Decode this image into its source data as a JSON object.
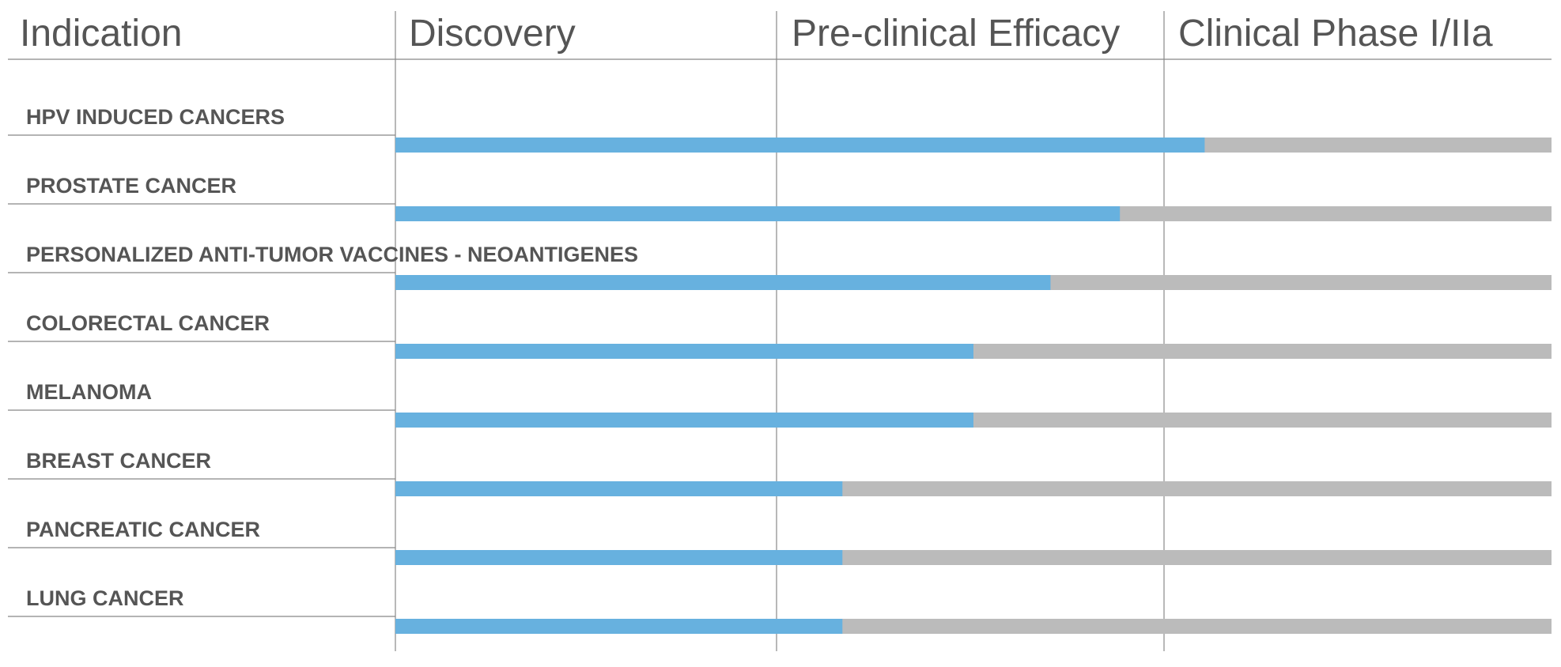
{
  "chart_data": {
    "type": "bar",
    "orientation": "horizontal",
    "columns": [
      "Indication",
      "Discovery",
      "Pre-clinical Efficacy",
      "Clinical Phase I/IIa"
    ],
    "categories": [
      "HPV INDUCED CANCERS",
      "PROSTATE CANCER",
      "PERSONALIZED ANTI-TUMOR VACCINES - NEOANTIGENES",
      "COLORECTAL CANCER",
      "MELANOMA",
      "BREAST CANCER",
      "PANCREATIC CANCER",
      "LUNG CANCER"
    ],
    "values": [
      2.1,
      1.88,
      1.7,
      1.5,
      1.5,
      1.16,
      1.16,
      1.16
    ],
    "xlim": [
      0,
      3
    ],
    "colors": {
      "progress": "#67b1df",
      "track": "#bbbbbb",
      "text": "#555555",
      "grid": "#888888"
    }
  }
}
